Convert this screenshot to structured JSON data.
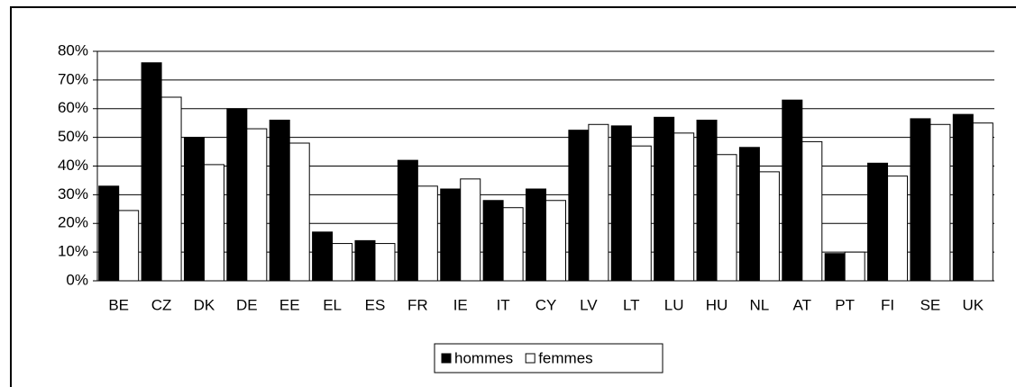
{
  "chart_data": {
    "type": "bar",
    "categories": [
      "BE",
      "CZ",
      "DK",
      "DE",
      "EE",
      "EL",
      "ES",
      "FR",
      "IE",
      "IT",
      "CY",
      "LV",
      "LT",
      "LU",
      "HU",
      "NL",
      "AT",
      "PT",
      "FI",
      "SE",
      "UK"
    ],
    "series": [
      {
        "name": "hommes",
        "color": "#000000",
        "values": [
          33,
          76,
          50,
          60,
          56,
          17,
          14,
          42,
          32,
          28,
          32,
          52.5,
          54,
          57,
          56,
          46.5,
          63,
          9.5,
          41,
          56.5,
          58
        ]
      },
      {
        "name": "femmes",
        "color": "#ffffff",
        "values": [
          24.5,
          64,
          40.5,
          53,
          48,
          13,
          13,
          33,
          35.5,
          25.5,
          28,
          54.5,
          47,
          51.5,
          44,
          38,
          48.5,
          10,
          36.5,
          54.5,
          55
        ]
      }
    ],
    "ylim": [
      0,
      80
    ],
    "yticks": [
      {
        "value": 0,
        "label": "0%"
      },
      {
        "value": 10,
        "label": "10%"
      },
      {
        "value": 20,
        "label": "20%"
      },
      {
        "value": 30,
        "label": "30%"
      },
      {
        "value": 40,
        "label": "40%"
      },
      {
        "value": 50,
        "label": "50%"
      },
      {
        "value": 60,
        "label": "60%"
      },
      {
        "value": 70,
        "label": "70%"
      },
      {
        "value": 80,
        "label": "80%"
      }
    ],
    "grid": true,
    "legend": "bottom"
  }
}
